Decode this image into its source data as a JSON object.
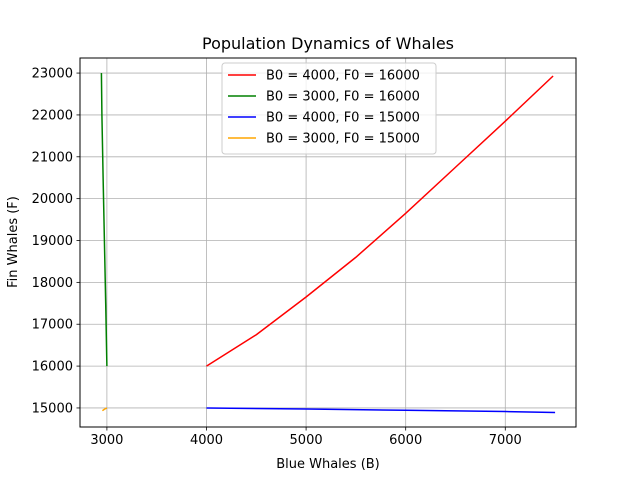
{
  "chart_data": {
    "type": "line",
    "title": "Population Dynamics of Whales",
    "xlabel": "Blue Whales (B)",
    "ylabel": "Fin Whales (F)",
    "xlim": [
      2730,
      7710
    ],
    "ylim": [
      14545,
      23360
    ],
    "xticks": [
      3000,
      4000,
      5000,
      6000,
      7000
    ],
    "yticks": [
      15000,
      16000,
      17000,
      18000,
      19000,
      20000,
      21000,
      22000,
      23000
    ],
    "grid": true,
    "legend": "upper center",
    "series": [
      {
        "name": "B0 = 4000, F0 = 16000",
        "color": "#ff0000",
        "x": [
          4000,
          4500,
          5000,
          5500,
          6000,
          6500,
          7000,
          7480
        ],
        "y": [
          16000,
          16750,
          17650,
          18600,
          19650,
          20750,
          21850,
          22930
        ]
      },
      {
        "name": "B0 = 3000, F0 = 16000",
        "color": "#008000",
        "x": [
          3000,
          2988,
          2975,
          2962,
          2950,
          2945
        ],
        "y": [
          16000,
          17500,
          19000,
          20500,
          22000,
          23000
        ]
      },
      {
        "name": "B0 = 4000, F0 = 15000",
        "color": "#0000ff",
        "x": [
          4000,
          5000,
          6000,
          7000,
          7500
        ],
        "y": [
          15000,
          14975,
          14945,
          14915,
          14890
        ]
      },
      {
        "name": "B0 = 3000, F0 = 15000",
        "color": "#ffa500",
        "x": [
          3000,
          2975,
          2955
        ],
        "y": [
          15000,
          14970,
          14935
        ]
      }
    ]
  }
}
